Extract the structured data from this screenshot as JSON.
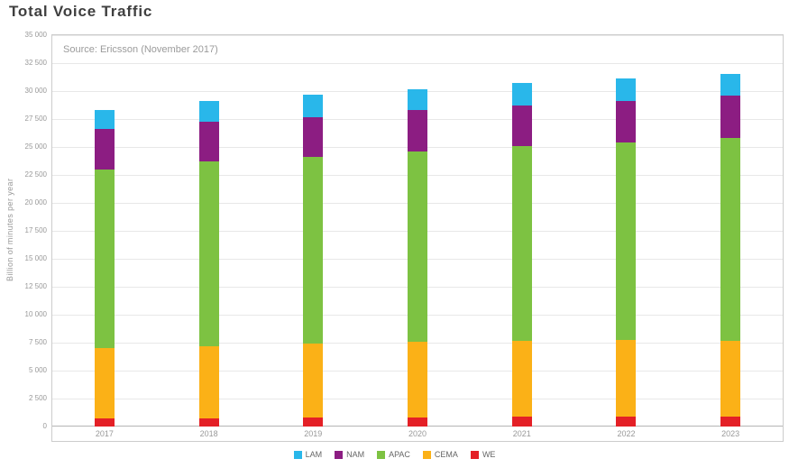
{
  "page": {
    "title": "Total Voice Traffic"
  },
  "chart_data": {
    "type": "bar",
    "stacked": true,
    "title": "Total Voice Traffic",
    "source_note": "Source: Ericsson (November 2017)",
    "ylabel": "Billion of minutes per year",
    "xlabel": "",
    "ylim": [
      0,
      35000
    ],
    "ytick_step": 2500,
    "ytick_labels": [
      "0",
      "2 500",
      "5 000",
      "7 500",
      "10 000",
      "12 500",
      "15 000",
      "17 500",
      "20 000",
      "22 500",
      "25 000",
      "27 500",
      "30 000",
      "32 500",
      "35 000"
    ],
    "categories": [
      "2017",
      "2018",
      "2019",
      "2020",
      "2021",
      "2022",
      "2023"
    ],
    "grid": true,
    "legend_position": "bottom",
    "legend_order": [
      "LAM",
      "NAM",
      "APAC",
      "CEMA",
      "WE"
    ],
    "series": [
      {
        "name": "WE",
        "color": "#e42026",
        "values": [
          700,
          750,
          800,
          800,
          850,
          850,
          900
        ]
      },
      {
        "name": "CEMA",
        "color": "#fbb117",
        "values": [
          6300,
          6450,
          6650,
          6800,
          6850,
          6900,
          6800
        ]
      },
      {
        "name": "APAC",
        "color": "#7dc242",
        "values": [
          16000,
          16500,
          16650,
          17000,
          17400,
          17650,
          18100
        ]
      },
      {
        "name": "NAM",
        "color": "#8c1d82",
        "values": [
          3600,
          3600,
          3600,
          3700,
          3600,
          3700,
          3800
        ]
      },
      {
        "name": "LAM",
        "color": "#29b7ea",
        "values": [
          1700,
          1800,
          2000,
          1900,
          2000,
          2000,
          1900
        ]
      }
    ]
  }
}
